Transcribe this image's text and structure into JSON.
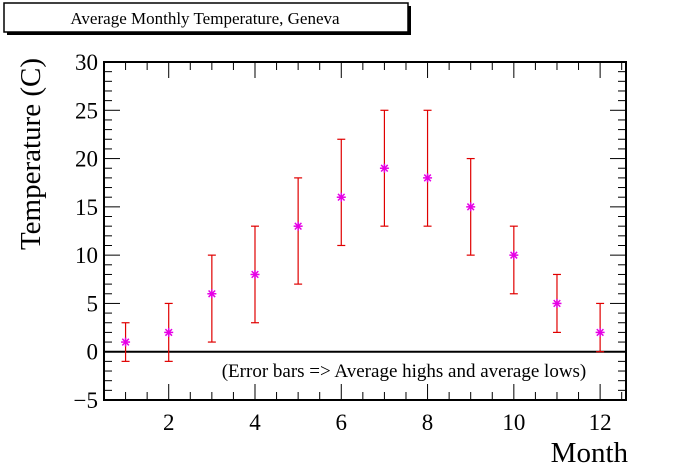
{
  "chart_data": {
    "type": "scatter",
    "title": "Average Monthly Temperature, Geneva",
    "xlabel": "Month",
    "ylabel": "Temperature (C)",
    "annotation": "(Error bars => Average highs and average lows)",
    "xlim": [
      0.5,
      12.6
    ],
    "ylim": [
      -5,
      30
    ],
    "x_ticks": [
      2,
      4,
      6,
      8,
      10,
      12
    ],
    "y_ticks": [
      -5,
      0,
      5,
      10,
      15,
      20,
      25,
      30
    ],
    "grid": false,
    "series": [
      {
        "x": [
          1,
          2,
          3,
          4,
          5,
          6,
          7,
          8,
          9,
          10,
          11,
          12
        ],
        "y": [
          1,
          2,
          6,
          8,
          13,
          16,
          19,
          18,
          15,
          10,
          5,
          2
        ],
        "low": [
          -1,
          -1,
          1,
          3,
          7,
          11,
          13,
          13,
          10,
          6,
          2,
          0
        ],
        "high": [
          3,
          5,
          10,
          13,
          18,
          22,
          25,
          25,
          20,
          13,
          8,
          5
        ]
      }
    ],
    "colors": {
      "marker": "#e600e6",
      "error_bar": "#e00000",
      "axis": "#000000",
      "zero_line": "#000000"
    }
  }
}
